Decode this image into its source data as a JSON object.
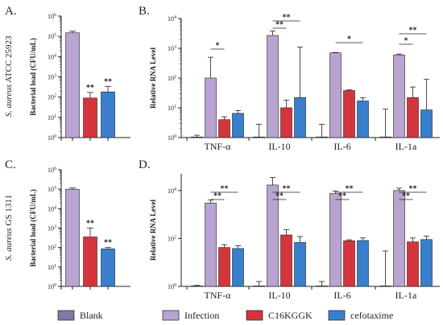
{
  "colors": {
    "Blank": "#7e7ba8",
    "Infection": "#b9a3d0",
    "C16KGGK": "#d4353d",
    "cefotaxime": "#3a7fcb",
    "axis": "#222222"
  },
  "legend": {
    "items": [
      {
        "key": "Blank",
        "label": "Blank"
      },
      {
        "key": "Infection",
        "label": "Infection"
      },
      {
        "key": "C16KGGK",
        "label": "C16KGGK"
      },
      {
        "key": "cefotaxime",
        "label": "cefotaxime"
      }
    ]
  },
  "chart_data": [
    {
      "id": "A",
      "panel_label": "A.",
      "type": "bar",
      "scale": "log",
      "ylabel": "Bacterial load (CFU/mL)",
      "side_label_italic": "S. aureus",
      "side_label_rest": " ATCC 25923",
      "ylim": [
        1,
        1000000
      ],
      "yticks": [
        {
          "v": 1,
          "base": "10",
          "exp": "0"
        },
        {
          "v": 10,
          "base": "10",
          "exp": "1"
        },
        {
          "v": 100,
          "base": "10",
          "exp": "2"
        },
        {
          "v": 1000,
          "base": "10",
          "exp": "3"
        },
        {
          "v": 10000,
          "base": "10",
          "exp": "4"
        },
        {
          "v": 100000,
          "base": "10",
          "exp": "5"
        },
        {
          "v": 1000000,
          "base": "10",
          "exp": "6"
        }
      ],
      "bars": [
        {
          "series": "Infection",
          "value": 150000,
          "err": 180000,
          "sig": ""
        },
        {
          "series": "C16KGGK",
          "value": 90,
          "err": 170,
          "sig": "**"
        },
        {
          "series": "cefotaxime",
          "value": 180,
          "err": 340,
          "sig": "**"
        }
      ]
    },
    {
      "id": "C",
      "panel_label": "C.",
      "type": "bar",
      "scale": "log",
      "ylabel": "Bacterial load (CFU/mL)",
      "side_label_italic": "S. aureus",
      "side_label_rest": " GS 1311",
      "ylim": [
        1,
        1000000
      ],
      "yticks": [
        {
          "v": 1,
          "base": "10",
          "exp": "0"
        },
        {
          "v": 10,
          "base": "10",
          "exp": "1"
        },
        {
          "v": 100,
          "base": "10",
          "exp": "2"
        },
        {
          "v": 1000,
          "base": "10",
          "exp": "3"
        },
        {
          "v": 10000,
          "base": "10",
          "exp": "4"
        },
        {
          "v": 100000,
          "base": "10",
          "exp": "5"
        },
        {
          "v": 1000000,
          "base": "10",
          "exp": "6"
        }
      ],
      "bars": [
        {
          "series": "Infection",
          "value": 100000,
          "err": 115000,
          "sig": ""
        },
        {
          "series": "C16KGGK",
          "value": 350,
          "err": 1000,
          "sig": "**"
        },
        {
          "series": "cefotaxime",
          "value": 85,
          "err": 100,
          "sig": "**"
        }
      ]
    },
    {
      "id": "B",
      "panel_label": "B.",
      "type": "bar",
      "scale": "log",
      "ylabel": "Relative RNA Level",
      "ylim": [
        1,
        10000
      ],
      "yticks": [
        {
          "v": 1,
          "base": "10",
          "exp": "0"
        },
        {
          "v": 10,
          "base": "10",
          "exp": "1"
        },
        {
          "v": 100,
          "base": "10",
          "exp": "2"
        },
        {
          "v": 1000,
          "base": "10",
          "exp": "3"
        },
        {
          "v": 10000,
          "base": "10",
          "exp": "4"
        }
      ],
      "categories": [
        "TNF-α",
        "IL-10",
        "IL-6",
        "IL-1a"
      ],
      "series": [
        {
          "name": "Blank",
          "values": [
            1.05,
            1.05,
            1.05,
            1.05
          ],
          "err": [
            1.2,
            2.8,
            2.8,
            9
          ]
        },
        {
          "name": "Infection",
          "values": [
            100,
            2700,
            700,
            600
          ],
          "err": [
            500,
            3800,
            720,
            640
          ]
        },
        {
          "name": "C16KGGK",
          "values": [
            4,
            10,
            38,
            22
          ],
          "err": [
            5,
            18,
            40,
            50
          ]
        },
        {
          "name": "cefotaxime",
          "values": [
            6.5,
            22,
            17,
            8.5
          ],
          "err": [
            8,
            1100,
            22,
            90
          ]
        }
      ],
      "comparisons": [
        {
          "cat": 0,
          "from": 1,
          "to": 2,
          "level": 0,
          "label": "*"
        },
        {
          "cat": 1,
          "from": 1,
          "to": 2,
          "level": 0,
          "label": "**"
        },
        {
          "cat": 1,
          "from": 1,
          "to": 3,
          "level": 1,
          "label": "**"
        },
        {
          "cat": 2,
          "from": 1,
          "to": 3,
          "level": 0,
          "label": "*"
        },
        {
          "cat": 3,
          "from": 1,
          "to": 2,
          "level": 0,
          "label": "*"
        },
        {
          "cat": 3,
          "from": 1,
          "to": 3,
          "level": 1,
          "label": "**"
        }
      ]
    },
    {
      "id": "D",
      "panel_label": "D.",
      "type": "bar",
      "scale": "log",
      "ylabel": "Relative RNA Level",
      "ylim": [
        1,
        50000
      ],
      "yticks": [
        {
          "v": 1,
          "base": "10",
          "exp": "0"
        },
        {
          "v": 100,
          "base": "10",
          "exp": "2"
        },
        {
          "v": 10000,
          "base": "10",
          "exp": "4"
        }
      ],
      "categories": [
        "TNF-α",
        "IL-10",
        "IL-6",
        "IL-1a"
      ],
      "series": [
        {
          "name": "Blank",
          "values": [
            1.05,
            1.05,
            1.05,
            1.05
          ],
          "err": [
            1.1,
            1.6,
            1.6,
            30
          ]
        },
        {
          "name": "Infection",
          "values": [
            3000,
            17000,
            7500,
            10000
          ],
          "err": [
            4000,
            35000,
            9500,
            12500
          ]
        },
        {
          "name": "C16KGGK",
          "values": [
            42,
            140,
            80,
            72
          ],
          "err": [
            55,
            230,
            88,
            105
          ]
        },
        {
          "name": "cefotaxime",
          "values": [
            38,
            68,
            82,
            90
          ],
          "err": [
            50,
            120,
            105,
            125
          ]
        }
      ],
      "comparisons": [
        {
          "cat": 0,
          "from": 1,
          "to": 2,
          "level": 0,
          "label": "**"
        },
        {
          "cat": 0,
          "from": 1,
          "to": 3,
          "level": 1,
          "label": "**"
        },
        {
          "cat": 1,
          "from": 1,
          "to": 2,
          "level": 0,
          "label": "**"
        },
        {
          "cat": 1,
          "from": 1,
          "to": 3,
          "level": 1,
          "label": "**"
        },
        {
          "cat": 2,
          "from": 1,
          "to": 2,
          "level": 0,
          "label": "**"
        },
        {
          "cat": 2,
          "from": 1,
          "to": 3,
          "level": 1,
          "label": "**"
        },
        {
          "cat": 3,
          "from": 1,
          "to": 2,
          "level": 0,
          "label": "**"
        },
        {
          "cat": 3,
          "from": 1,
          "to": 3,
          "level": 1,
          "label": "**"
        }
      ]
    }
  ]
}
